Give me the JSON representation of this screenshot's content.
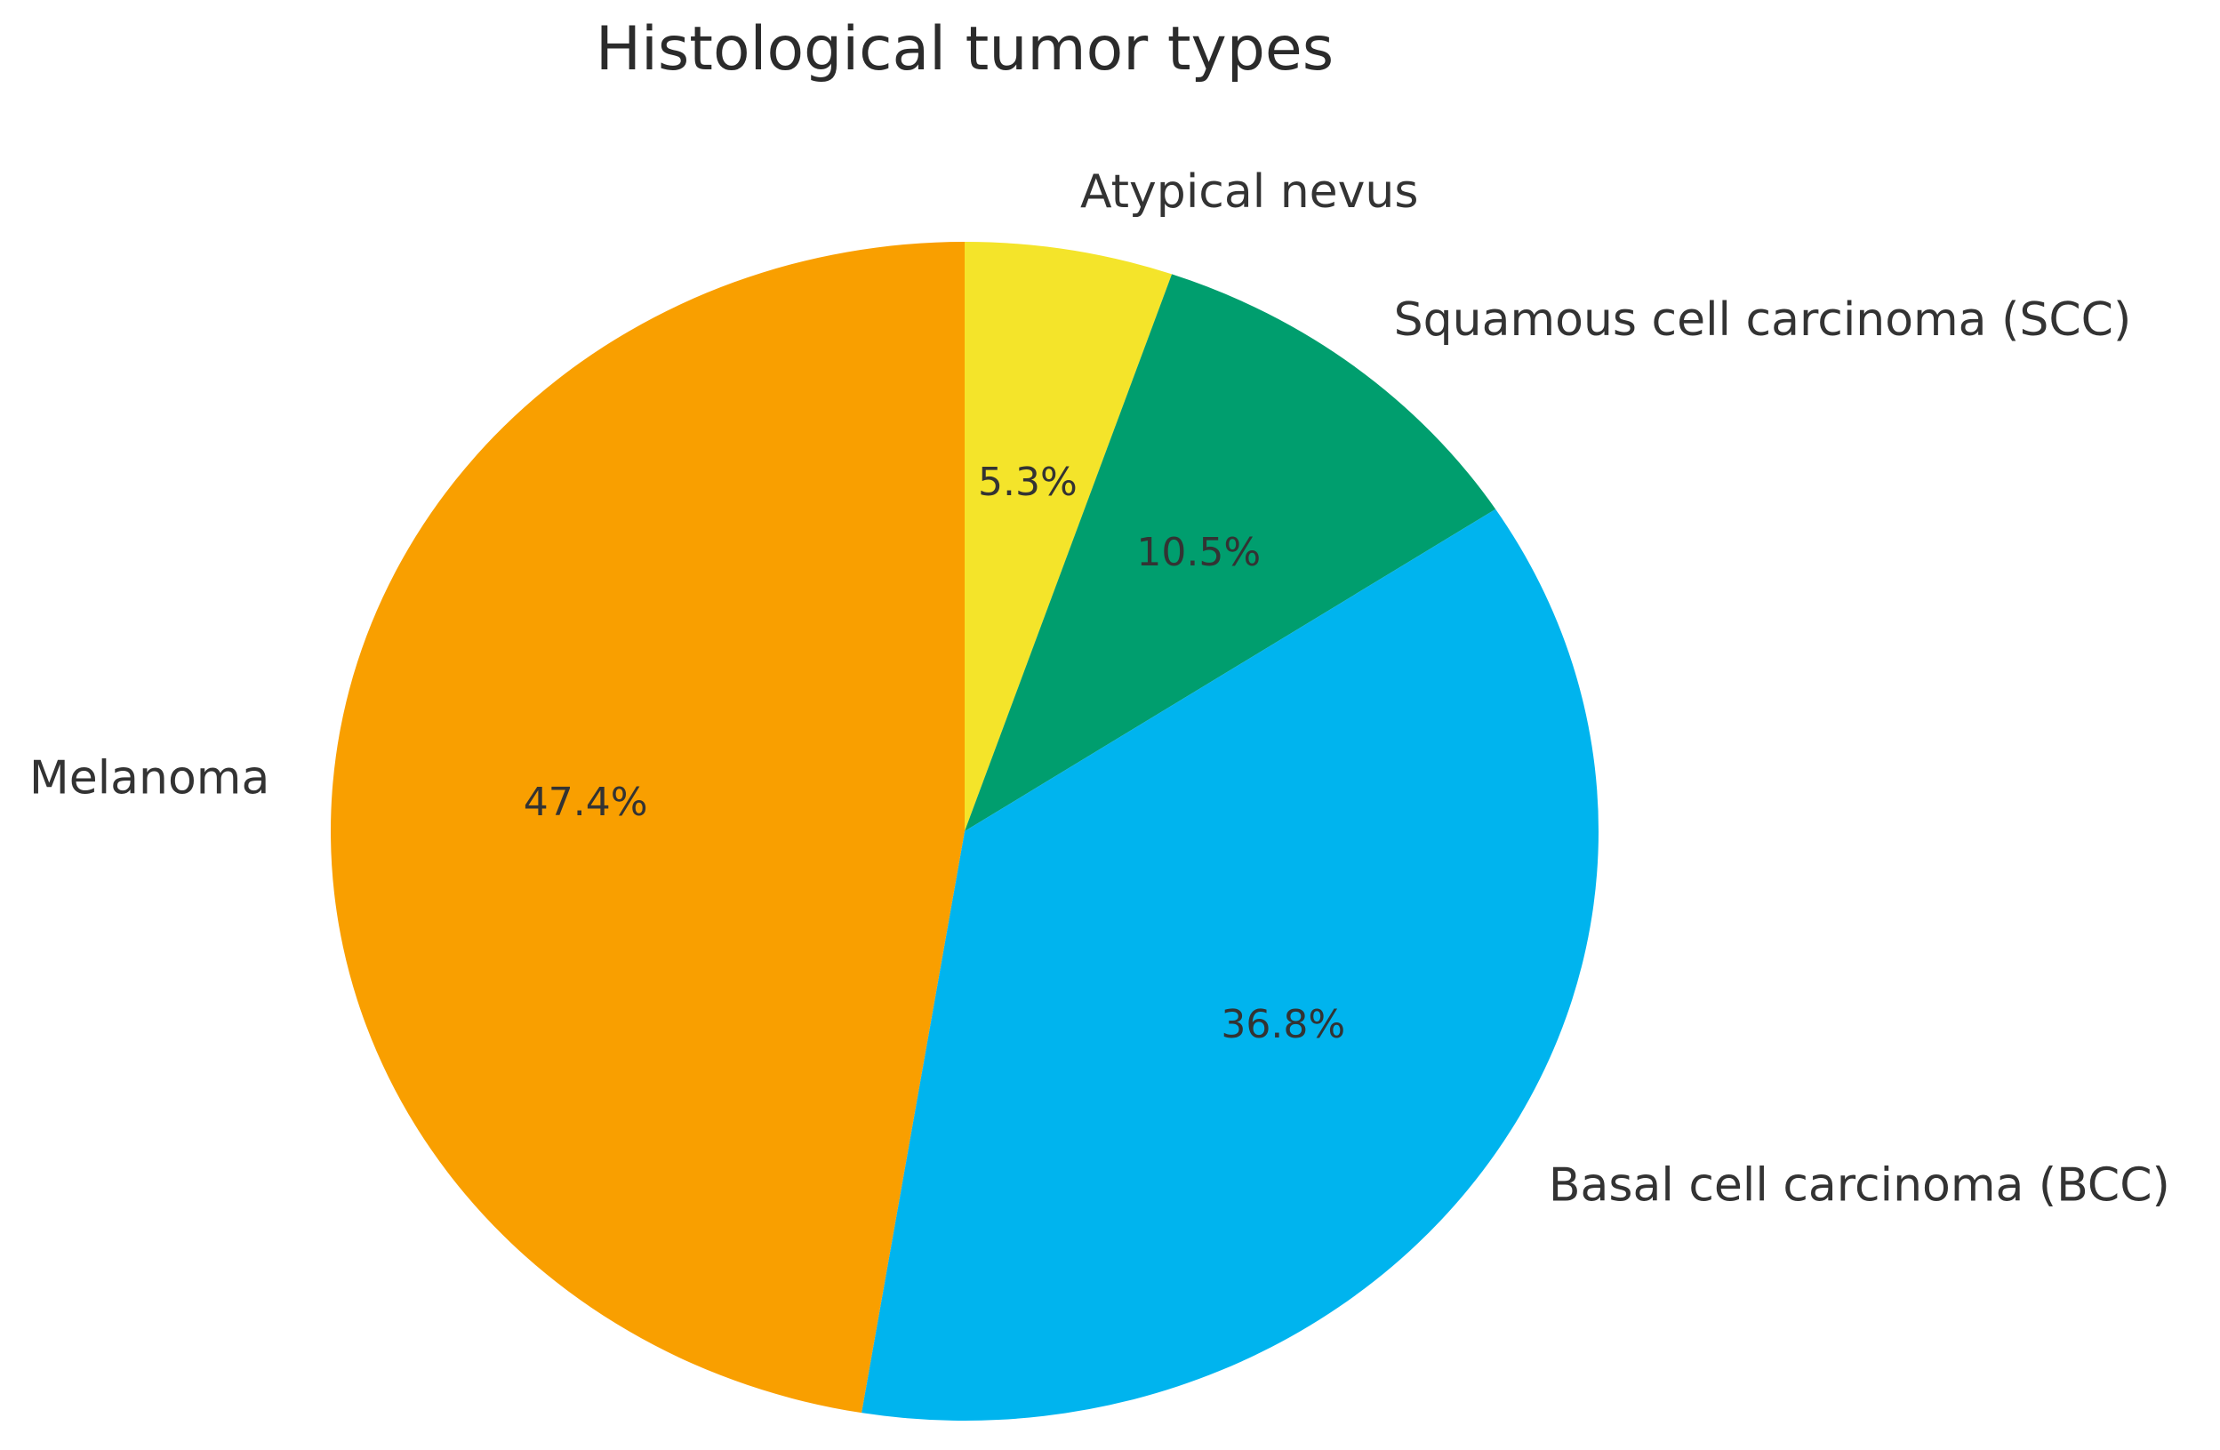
{
  "chart_data": {
    "type": "pie",
    "title": "Histological tumor types",
    "start_angle_deg": 90,
    "direction": "clockwise",
    "slices": [
      {
        "label": "Atypical nevus",
        "value": 5.3,
        "pct_label": "5.3%",
        "color": "#F4E42A"
      },
      {
        "label": "Squamous cell carcinoma (SCC)",
        "value": 10.5,
        "pct_label": "10.5%",
        "color": "#009E6E"
      },
      {
        "label": "Basal cell carcinoma (BCC)",
        "value": 36.8,
        "pct_label": "36.8%",
        "color": "#00B4EE"
      },
      {
        "label": "Melanoma",
        "value": 47.4,
        "pct_label": "47.4%",
        "color": "#F99F00"
      }
    ]
  }
}
